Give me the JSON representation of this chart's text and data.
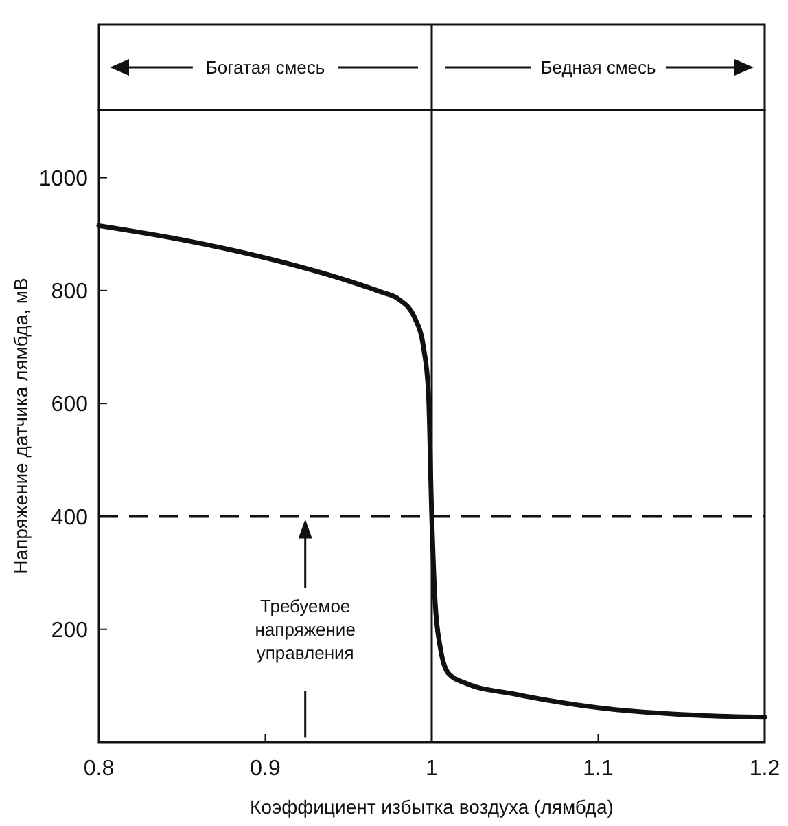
{
  "chart_data": {
    "type": "line",
    "xlabel": "Коэффициент избытка воздуха (лямбда)",
    "ylabel": "Напряжение датчика лямбда, мВ",
    "xlim": [
      0.8,
      1.2
    ],
    "xticks": [
      0.8,
      0.9,
      1.0,
      1.1,
      1.2
    ],
    "ylim": [
      0,
      1120
    ],
    "yticks": [
      200,
      400,
      600,
      800,
      1000
    ],
    "series": [
      {
        "color": "#111111",
        "x": [
          0.8,
          0.85,
          0.9,
          0.95,
          0.97,
          0.98,
          0.99,
          0.995,
          0.998,
          1.0,
          1.002,
          1.005,
          1.01,
          1.02,
          1.05,
          1.1,
          1.15,
          1.2
        ],
        "values": [
          915,
          890,
          858,
          817,
          797,
          785,
          750,
          700,
          620,
          400,
          250,
          170,
          122,
          105,
          85,
          61,
          49,
          44
        ]
      }
    ],
    "ref_lines": [
      {
        "axis": "y",
        "value": 400,
        "line_style": "dashed",
        "color": "#111111"
      },
      {
        "axis": "x",
        "value": 1.0,
        "line_style": "solid",
        "color": "#111111"
      }
    ],
    "annotations": [
      "Богатая смесь",
      "Бедная смесь",
      "Требуемое напряжение управления"
    ],
    "grid": false,
    "marker": "none",
    "line_style": "solid"
  }
}
